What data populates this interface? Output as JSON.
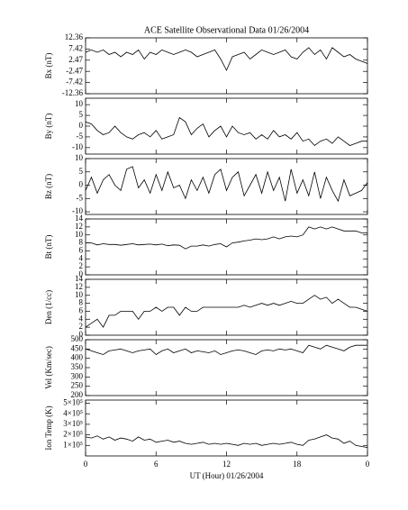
{
  "chart_data": [
    {
      "type": "line",
      "title": "ACE Satellite Observational Data   01/26/2004",
      "ylabel": "Bx (nT)",
      "x": [
        0,
        0.5,
        1,
        1.5,
        2,
        2.5,
        3,
        3.5,
        4,
        4.5,
        5,
        5.5,
        6,
        6.5,
        7,
        7.5,
        8,
        8.5,
        9,
        9.5,
        10,
        10.5,
        11,
        11.5,
        12,
        12.5,
        13,
        13.5,
        14,
        14.5,
        15,
        15.5,
        16,
        16.5,
        17,
        17.5,
        18,
        18.5,
        19,
        19.5,
        20,
        20.5,
        21,
        21.5,
        22,
        22.5,
        23,
        23.5,
        24
      ],
      "values": [
        6,
        7,
        6,
        7,
        5,
        6,
        4,
        6,
        5,
        7,
        3,
        6,
        5,
        7,
        6,
        5,
        6,
        7,
        6,
        4,
        5,
        6,
        7,
        3,
        -2,
        4,
        5,
        6,
        3,
        5,
        7,
        6,
        5,
        6,
        7,
        4,
        3,
        6,
        8,
        5,
        7,
        3,
        8,
        6,
        4,
        5,
        3,
        2,
        1
      ],
      "ylim": [
        -12.36,
        12.36
      ],
      "yticks": [
        12.36,
        7.42,
        2.47,
        -2.47,
        -7.42,
        -12.36
      ]
    },
    {
      "type": "line",
      "ylabel": "By (nT)",
      "x": [
        0,
        0.5,
        1,
        1.5,
        2,
        2.5,
        3,
        3.5,
        4,
        4.5,
        5,
        5.5,
        6,
        6.5,
        7,
        7.5,
        8,
        8.5,
        9,
        9.5,
        10,
        10.5,
        11,
        11.5,
        12,
        12.5,
        13,
        13.5,
        14,
        14.5,
        15,
        15.5,
        16,
        16.5,
        17,
        17.5,
        18,
        18.5,
        19,
        19.5,
        20,
        20.5,
        21,
        21.5,
        22,
        22.5,
        23,
        23.5,
        24
      ],
      "values": [
        2,
        1,
        -2,
        -4,
        -3,
        0,
        -3,
        -5,
        -6,
        -4,
        -3,
        -5,
        -2,
        -6,
        -5,
        -4,
        4,
        2,
        -4,
        -1,
        1,
        -5,
        -2,
        0,
        -5,
        0,
        -3,
        -4,
        -3,
        -6,
        -4,
        -6,
        -2,
        -5,
        -4,
        -6,
        -3,
        -7,
        -6,
        -9,
        -7,
        -6,
        -8,
        -5,
        -7,
        -9,
        -8,
        -7,
        -7
      ],
      "ylim": [
        -13,
        13
      ],
      "yticks": [
        10,
        5,
        0,
        -5,
        -10
      ]
    },
    {
      "type": "line",
      "ylabel": "Bz (nT)",
      "x": [
        0,
        0.5,
        1,
        1.5,
        2,
        2.5,
        3,
        3.5,
        4,
        4.5,
        5,
        5.5,
        6,
        6.5,
        7,
        7.5,
        8,
        8.5,
        9,
        9.5,
        10,
        10.5,
        11,
        11.5,
        12,
        12.5,
        13,
        13.5,
        14,
        14.5,
        15,
        15.5,
        16,
        16.5,
        17,
        17.5,
        18,
        18.5,
        19,
        19.5,
        20,
        20.5,
        21,
        21.5,
        22,
        22.5,
        23,
        23.5,
        24
      ],
      "values": [
        -2,
        3,
        -3,
        2,
        4,
        0,
        -2,
        6,
        7,
        -1,
        2,
        -3,
        4,
        -2,
        5,
        -1,
        0,
        -5,
        2,
        -2,
        3,
        -3,
        4,
        6,
        -2,
        3,
        5,
        -4,
        0,
        4,
        -3,
        5,
        -2,
        3,
        -6,
        6,
        -3,
        2,
        -4,
        5,
        -5,
        3,
        -2,
        -6,
        2,
        -4,
        -3,
        -2,
        1
      ],
      "ylim": [
        -11,
        10
      ],
      "yticks": [
        10,
        5,
        0,
        -5,
        -10
      ]
    },
    {
      "type": "line",
      "ylabel": "Bt (nT)",
      "x": [
        0,
        0.5,
        1,
        1.5,
        2,
        2.5,
        3,
        3.5,
        4,
        4.5,
        5,
        5.5,
        6,
        6.5,
        7,
        7.5,
        8,
        8.5,
        9,
        9.5,
        10,
        10.5,
        11,
        11.5,
        12,
        12.5,
        13,
        13.5,
        14,
        14.5,
        15,
        15.5,
        16,
        16.5,
        17,
        17.5,
        18,
        18.5,
        19,
        19.5,
        20,
        20.5,
        21,
        21.5,
        22,
        22.5,
        23,
        23.5,
        24
      ],
      "values": [
        8,
        8,
        7.5,
        7.8,
        7.6,
        7.6,
        7.4,
        7.6,
        7.8,
        7.5,
        7.6,
        7.7,
        7.5,
        7.7,
        7.3,
        7.5,
        7.4,
        6.5,
        7.2,
        7.2,
        7.5,
        7.2,
        7.6,
        7.8,
        7,
        8,
        8.2,
        8.5,
        8.7,
        9,
        8.8,
        9,
        9.5,
        9,
        9.5,
        9.7,
        9.5,
        10,
        12,
        11.5,
        12,
        11.5,
        12,
        11.5,
        11,
        11,
        11,
        10.5,
        10.5
      ],
      "ylim": [
        0,
        14
      ],
      "yticks": [
        14,
        12,
        10,
        8,
        6,
        4,
        2,
        0
      ]
    },
    {
      "type": "line",
      "ylabel": "Den (1/cc)",
      "x": [
        0,
        0.5,
        1,
        1.5,
        2,
        2.5,
        3,
        3.5,
        4,
        4.5,
        5,
        5.5,
        6,
        6.5,
        7,
        7.5,
        8,
        8.5,
        9,
        9.5,
        10,
        10.5,
        11,
        11.5,
        12,
        12.5,
        13,
        13.5,
        14,
        14.5,
        15,
        15.5,
        16,
        16.5,
        17,
        17.5,
        18,
        18.5,
        19,
        19.5,
        20,
        20.5,
        21,
        21.5,
        22,
        22.5,
        23,
        23.5,
        24
      ],
      "values": [
        2,
        3,
        4,
        2,
        5,
        5,
        6,
        6,
        6,
        4,
        6,
        6,
        7,
        6,
        7,
        7,
        5,
        7,
        6,
        6,
        7,
        7,
        7,
        7,
        7,
        7,
        7,
        7.5,
        7,
        7.5,
        8,
        7.5,
        8,
        7.5,
        8,
        8.5,
        8,
        8,
        9,
        10,
        9,
        9.5,
        8,
        9,
        8,
        7,
        7,
        6.5,
        6
      ],
      "ylim": [
        0,
        14
      ],
      "yticks": [
        14,
        12,
        10,
        8,
        6,
        4,
        2,
        0
      ]
    },
    {
      "type": "line",
      "ylabel": "Vel (Km/sec)",
      "x": [
        0,
        0.5,
        1,
        1.5,
        2,
        2.5,
        3,
        3.5,
        4,
        4.5,
        5,
        5.5,
        6,
        6.5,
        7,
        7.5,
        8,
        8.5,
        9,
        9.5,
        10,
        10.5,
        11,
        11.5,
        12,
        12.5,
        13,
        13.5,
        14,
        14.5,
        15,
        15.5,
        16,
        16.5,
        17,
        17.5,
        18,
        18.5,
        19,
        19.5,
        20,
        20.5,
        21,
        21.5,
        22,
        22.5,
        23,
        23.5,
        24
      ],
      "values": [
        450,
        440,
        430,
        420,
        440,
        445,
        450,
        440,
        430,
        440,
        445,
        450,
        420,
        440,
        450,
        430,
        440,
        450,
        430,
        440,
        435,
        430,
        440,
        420,
        430,
        440,
        445,
        440,
        430,
        420,
        440,
        445,
        440,
        450,
        445,
        450,
        440,
        430,
        470,
        460,
        450,
        470,
        460,
        450,
        440,
        460,
        470,
        470,
        470
      ],
      "ylim": [
        200,
        500
      ],
      "yticks": [
        500,
        450,
        400,
        350,
        300,
        250,
        200
      ]
    },
    {
      "type": "line",
      "ylabel": "Ion Temp (K)",
      "xlabel": "UT (Hour)  01/26/2004",
      "x": [
        0,
        0.5,
        1,
        1.5,
        2,
        2.5,
        3,
        3.5,
        4,
        4.5,
        5,
        5.5,
        6,
        6.5,
        7,
        7.5,
        8,
        8.5,
        9,
        9.5,
        10,
        10.5,
        11,
        11.5,
        12,
        12.5,
        13,
        13.5,
        14,
        14.5,
        15,
        15.5,
        16,
        16.5,
        17,
        17.5,
        18,
        18.5,
        19,
        19.5,
        20,
        20.5,
        21,
        21.5,
        22,
        22.5,
        23,
        23.5,
        24
      ],
      "values": [
        180000,
        170000,
        190000,
        160000,
        180000,
        150000,
        170000,
        160000,
        140000,
        180000,
        150000,
        160000,
        130000,
        140000,
        150000,
        130000,
        140000,
        120000,
        110000,
        120000,
        130000,
        110000,
        120000,
        110000,
        120000,
        110000,
        100000,
        120000,
        110000,
        120000,
        100000,
        110000,
        120000,
        110000,
        120000,
        130000,
        110000,
        100000,
        150000,
        160000,
        180000,
        200000,
        170000,
        160000,
        120000,
        140000,
        100000,
        90000,
        80000
      ],
      "ylim": [
        0,
        530000
      ],
      "yticks": [
        {
          "value": 500000,
          "label": "5×10⁵"
        },
        {
          "value": 400000,
          "label": "4×10⁵"
        },
        {
          "value": 300000,
          "label": "3×10⁵"
        },
        {
          "value": 200000,
          "label": "2×10⁵"
        },
        {
          "value": 100000,
          "label": "1×10⁵"
        }
      ],
      "xlim": [
        0,
        24
      ],
      "xticks": [
        0,
        6,
        12,
        18,
        {
          "value": 24,
          "label": "0"
        }
      ]
    }
  ]
}
